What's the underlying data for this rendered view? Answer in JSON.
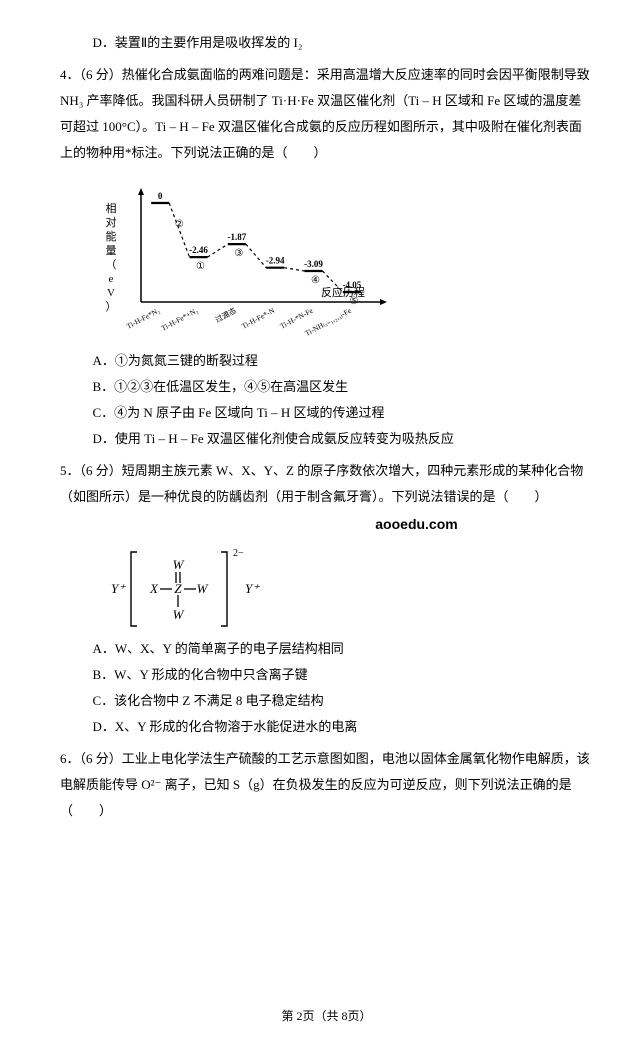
{
  "q3": {
    "optD": "D．装置Ⅱ的主要作用是吸收挥发的 I₂"
  },
  "q4": {
    "header": "4．（6 分）热催化合成氨面临的两难问题是：采用高温增大反应速率的同时会因平衡限制导致 NH₃ 产率降低。我国科研人员研制了 Ti·H·Fe 双温区催化剂（Ti – H 区域和 Fe 区域的温度差可超过 100°C）。Ti – H – Fe 双温区催化合成氨的反应历程如图所示，其中吸附在催化剂表面上的物种用*标注。下列说法正确的是（　　）",
    "chart": {
      "type": "step-line",
      "ylabel": "相对能量（eV）",
      "xlabel": "反应历程",
      "x_ticks": [
        "Ti-H-Fe*N₂",
        "Ti-H-Fe*+N₂",
        "过渡态",
        "Ti-H-Fe*-N",
        "Ti-H-*N-Fe",
        "Ti-NH₍ₓ₌₁,₂,₃₎-Fe"
      ],
      "steps": [
        {
          "y": 0,
          "label": "0"
        },
        {
          "y": -2.46,
          "label": "-2.46",
          "mark": "①",
          "transition_label": "②"
        },
        {
          "y": -1.87,
          "label": "-1.87",
          "mark": "③"
        },
        {
          "y": -2.94,
          "label": "-2.94"
        },
        {
          "y": -3.09,
          "label": "-3.09",
          "mark": "④"
        },
        {
          "y": -4.05,
          "label": "-4.05",
          "mark": "⑤"
        }
      ],
      "colors": {
        "line": "#000000",
        "axis": "#000000",
        "text": "#000000",
        "bg": "#ffffff"
      },
      "ylim": [
        -4.5,
        0.5
      ],
      "line_width": 1.5,
      "dash": "3,3"
    },
    "optA": "A．①为氮氮三键的断裂过程",
    "optB": "B．①②③在低温区发生，④⑤在高温区发生",
    "optC": "C．④为 N 原子由 Fe 区域向 Ti – H 区域的传递过程",
    "optD": "D．使用 Ti – H – Fe 双温区催化剂使合成氨反应转变为吸热反应"
  },
  "q5": {
    "header": "5．（6 分）短周期主族元素 W、X、Y、Z 的原子序数依次增大，四种元素形成的某种化合物（如图所示）是一种优良的防龋齿剂（用于制含氟牙膏）。下列说法错误的是（　　）",
    "watermark": "aooedu.com",
    "struct": {
      "outer_left": "Y⁺",
      "outer_right": "Y⁺",
      "charge": "2−",
      "top": "W",
      "left": "X",
      "center": "Z",
      "right": "W",
      "bottom": "W",
      "bond_colors": "#000000"
    },
    "optA": "A．W、X、Y 的简单离子的电子层结构相同",
    "optB": "B．W、Y 形成的化合物中只含离子键",
    "optC": "C．该化合物中 Z 不满足 8 电子稳定结构",
    "optD": "D．X、Y 形成的化合物溶于水能促进水的电离"
  },
  "q6": {
    "header": "6．（6 分）工业上电化学法生产硫酸的工艺示意图如图，电池以固体金属氧化物作电解质，该电解质能传导 O²⁻ 离子，已知 S（g）在负极发生的反应为可逆反应，则下列说法正确的是（　　）"
  },
  "footer": "第 2页（共 8页）"
}
